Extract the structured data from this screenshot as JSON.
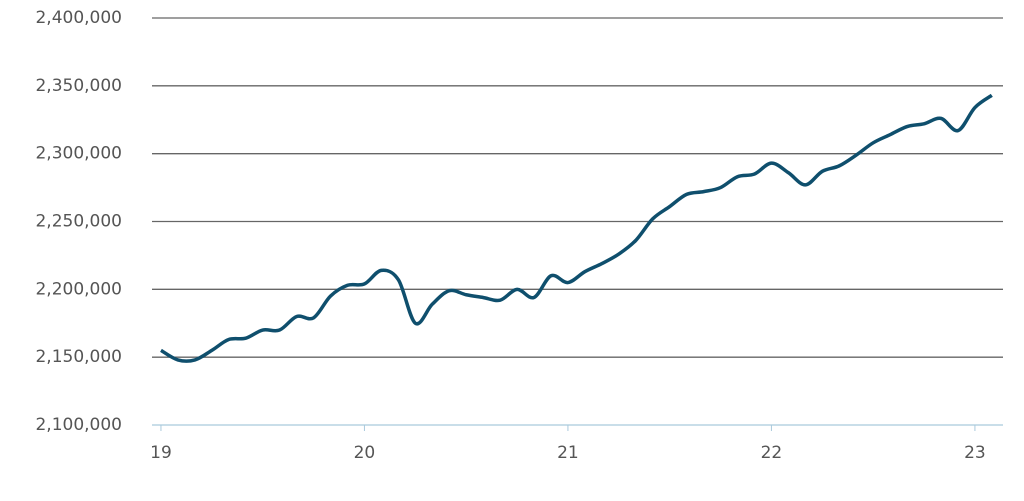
{
  "chart_data": {
    "type": "line",
    "x": [
      19,
      19.083,
      19.167,
      19.25,
      19.333,
      19.417,
      19.5,
      19.583,
      19.667,
      19.75,
      19.833,
      19.917,
      20,
      20.083,
      20.167,
      20.25,
      20.333,
      20.417,
      20.5,
      20.583,
      20.667,
      20.75,
      20.833,
      20.917,
      21,
      21.083,
      21.167,
      21.25,
      21.333,
      21.417,
      21.5,
      21.583,
      21.667,
      21.75,
      21.833,
      21.917,
      22,
      22.083,
      22.167,
      22.25,
      22.333,
      22.417,
      22.5,
      22.583,
      22.667,
      22.75,
      22.833,
      22.917,
      23,
      23.083
    ],
    "series": [
      {
        "color": "#0f4f6d",
        "values": [
          2155000,
          2148000,
          2148000,
          2155000,
          2163000,
          2164000,
          2170000,
          2170000,
          2180000,
          2179000,
          2195000,
          2203000,
          2204000,
          2214000,
          2207000,
          2175000,
          2189000,
          2199000,
          2196000,
          2194000,
          2192000,
          2200000,
          2194000,
          2210000,
          2205000,
          2213000,
          2219000,
          2226000,
          2236000,
          2252000,
          2261000,
          2270000,
          2272000,
          2275000,
          2283000,
          2285000,
          2293000,
          2286000,
          2277000,
          2287000,
          2291000,
          2299000,
          2308000,
          2314000,
          2320000,
          2322000,
          2326000,
          2317000,
          2334000,
          2343000
        ]
      }
    ],
    "xlim": [
      18.956,
      23.138
    ],
    "xticks": [
      19,
      20,
      21,
      22,
      23
    ],
    "ylim": [
      2100000,
      2400000
    ],
    "yticks": [
      {
        "value": 2100000,
        "label": "2,100,000"
      },
      {
        "value": 2150000,
        "label": "2,150,000"
      },
      {
        "value": 2200000,
        "label": "2,200,000"
      },
      {
        "value": 2250000,
        "label": "2,250,000"
      },
      {
        "value": 2300000,
        "label": "2,300,000"
      },
      {
        "value": 2350000,
        "label": "2,350,000"
      },
      {
        "value": 2400000,
        "label": "2,400,000"
      }
    ],
    "grid": true
  }
}
